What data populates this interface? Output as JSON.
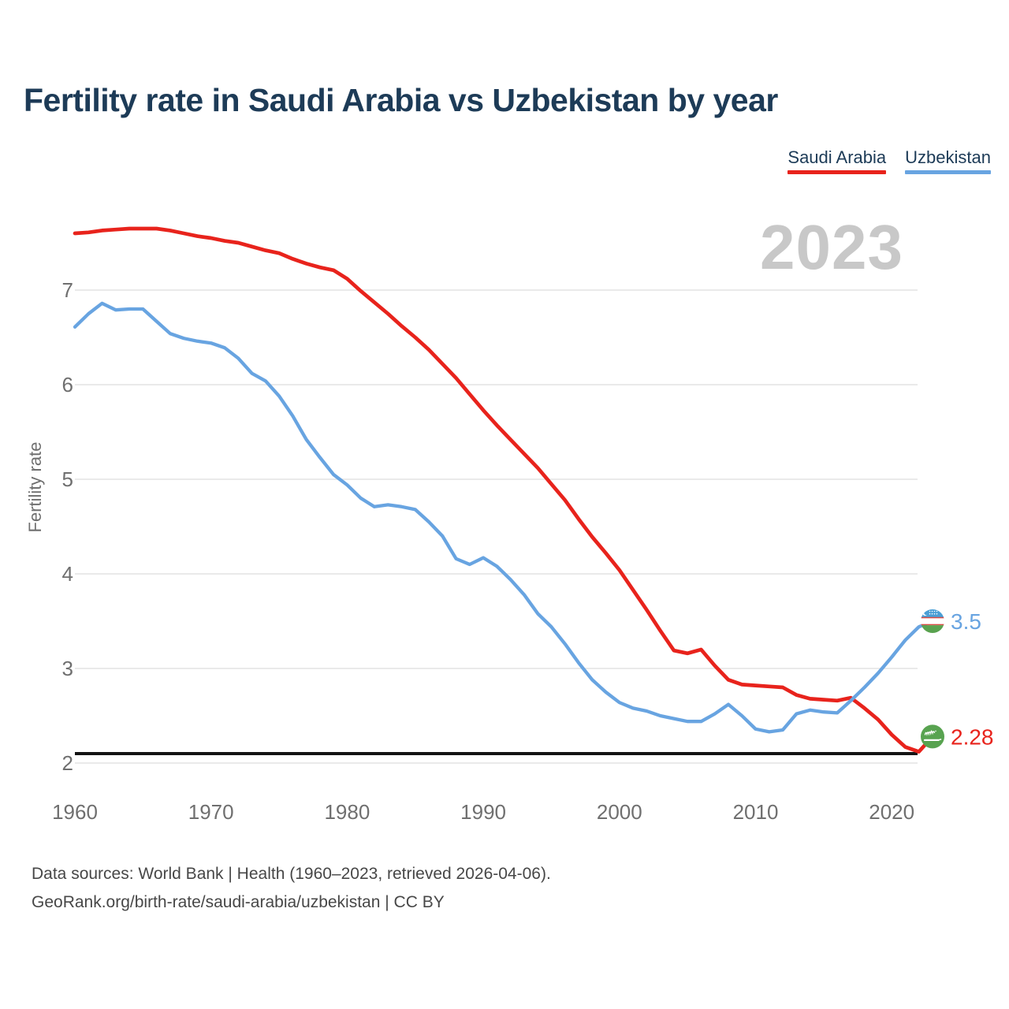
{
  "header": {
    "title": "Fertility rate in Saudi Arabia vs Uzbekistan by year"
  },
  "legend": {
    "items": [
      {
        "label": "Saudi Arabia",
        "color": "#e8231c"
      },
      {
        "label": "Uzbekistan",
        "color": "#68a4e1"
      }
    ]
  },
  "watermark": "2023",
  "footer": {
    "line1": "Data sources: World Bank | Health (1960–2023, retrieved 2026-04-06).",
    "line2": "GeoRank.org/birth-rate/saudi-arabia/uzbekistan | CC BY"
  },
  "chart_data": {
    "type": "line",
    "title": "Fertility rate in Saudi Arabia vs Uzbekistan by year",
    "xlabel": "",
    "ylabel": "Fertility rate",
    "x_start": 1960,
    "x_end": 2023,
    "x_ticks": [
      1960,
      1970,
      1980,
      1990,
      2000,
      2010,
      2020
    ],
    "y_ticks": [
      2,
      3,
      4,
      5,
      6,
      7
    ],
    "ylim": [
      1.95,
      7.75
    ],
    "grid": "horizontal",
    "legend_position": "top-right",
    "current_year_label": "2023",
    "reference_line": {
      "value": 2.1,
      "color": "#141414",
      "meaning": "replacement level"
    },
    "series": [
      {
        "name": "Saudi Arabia",
        "color": "#e8231c",
        "end_label": "2.28",
        "end_value": 2.28,
        "flag": "saudi-arabia",
        "values": [
          7.6,
          7.61,
          7.63,
          7.64,
          7.65,
          7.65,
          7.65,
          7.63,
          7.6,
          7.57,
          7.55,
          7.52,
          7.5,
          7.46,
          7.42,
          7.39,
          7.33,
          7.28,
          7.24,
          7.21,
          7.12,
          6.99,
          6.87,
          6.75,
          6.62,
          6.5,
          6.37,
          6.22,
          6.07,
          5.9,
          5.73,
          5.57,
          5.42,
          5.27,
          5.12,
          4.95,
          4.78,
          4.58,
          4.39,
          4.22,
          4.04,
          3.83,
          3.62,
          3.4,
          3.19,
          3.16,
          3.2,
          3.03,
          2.88,
          2.83,
          2.82,
          2.81,
          2.8,
          2.72,
          2.68,
          2.67,
          2.66,
          2.69,
          2.58,
          2.46,
          2.3,
          2.17,
          2.12,
          2.28
        ]
      },
      {
        "name": "Uzbekistan",
        "color": "#68a4e1",
        "end_label": "3.5",
        "end_value": 3.5,
        "flag": "uzbekistan",
        "values": [
          6.61,
          6.75,
          6.86,
          6.79,
          6.8,
          6.8,
          6.67,
          6.54,
          6.49,
          6.46,
          6.44,
          6.39,
          6.28,
          6.12,
          6.04,
          5.88,
          5.67,
          5.42,
          5.23,
          5.05,
          4.94,
          4.8,
          4.71,
          4.73,
          4.71,
          4.68,
          4.55,
          4.4,
          4.16,
          4.1,
          4.17,
          4.08,
          3.94,
          3.78,
          3.58,
          3.44,
          3.26,
          3.06,
          2.88,
          2.75,
          2.64,
          2.58,
          2.55,
          2.5,
          2.47,
          2.44,
          2.44,
          2.52,
          2.62,
          2.5,
          2.36,
          2.33,
          2.35,
          2.52,
          2.56,
          2.54,
          2.53,
          2.66,
          2.8,
          2.95,
          3.12,
          3.3,
          3.44,
          3.5
        ]
      }
    ],
    "flag_colors": {
      "uzbekistan_blue": "#4a9fd6",
      "uzbekistan_white": "#ffffff",
      "uzbekistan_red": "#d84b44",
      "uzbekistan_green": "#59a24f",
      "saudi_green": "#58a350",
      "saudi_white": "#ffffff"
    }
  }
}
